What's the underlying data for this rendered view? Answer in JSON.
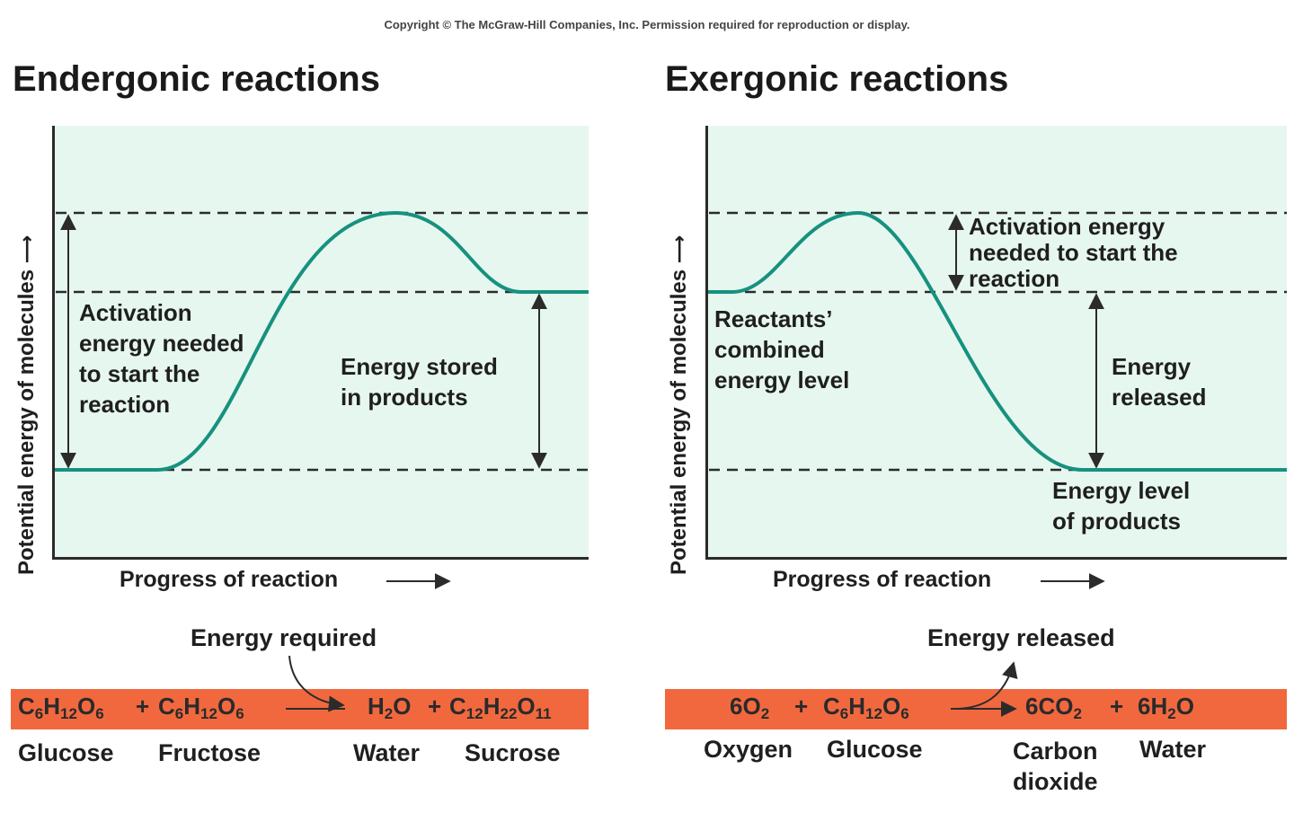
{
  "copyright": "Copyright © The McGraw-Hill Companies, Inc. Permission required for reproduction or display.",
  "colors": {
    "plot_fill": "#e6f7ef",
    "curve": "#17917f",
    "bar": "#f1683f",
    "lines": "#2b2b2b"
  },
  "endergonic": {
    "title": "Endergonic reactions",
    "ylabel": "Potential energy of molecules",
    "xlabel": "Progress of reaction",
    "activation_label": [
      "Activation",
      "energy needed",
      "to start the",
      "reaction"
    ],
    "stored_label": [
      "Energy stored",
      "in products"
    ],
    "energy_note": "Energy required",
    "equation": {
      "reactant1": {
        "t": [
          "C",
          "H",
          "O"
        ],
        "s": [
          "6",
          "12",
          "6"
        ]
      },
      "plus1": "+",
      "reactant2": {
        "t": [
          "C",
          "H",
          "O"
        ],
        "s": [
          "6",
          "12",
          "6"
        ]
      },
      "product1": {
        "t": [
          "H",
          "O"
        ],
        "s": [
          "2",
          ""
        ]
      },
      "plus2": "+",
      "product2": {
        "t": [
          "C",
          "H",
          "O"
        ],
        "s": [
          "12",
          "22",
          "11"
        ]
      }
    },
    "captions": [
      "Glucose",
      "Fructose",
      "Water",
      "Sucrose"
    ]
  },
  "exergonic": {
    "title": "Exergonic reactions",
    "ylabel": "Potential energy of molecules",
    "xlabel": "Progress of reaction",
    "activation_label": [
      "Activation energy",
      "needed to start the",
      "reaction"
    ],
    "reactants_label": [
      "Reactants’",
      "combined",
      "energy level"
    ],
    "released_label": [
      "Energy",
      "released"
    ],
    "products_label": [
      "Energy level",
      "of products"
    ],
    "energy_note": "Energy released",
    "equation": {
      "reactant1": "6O",
      "reactant1_sub": "2",
      "plus1": "+",
      "reactant2": {
        "t": [
          "C",
          "H",
          "O"
        ],
        "s": [
          "6",
          "12",
          "6"
        ]
      },
      "product1": "6CO",
      "product1_sub": "2",
      "plus2": "+",
      "product2": "6H",
      "product2_sub": "2",
      "product2_tail": "O"
    },
    "captions": [
      "Oxygen",
      "Glucose",
      "Carbon",
      "dioxide",
      "Water"
    ]
  }
}
